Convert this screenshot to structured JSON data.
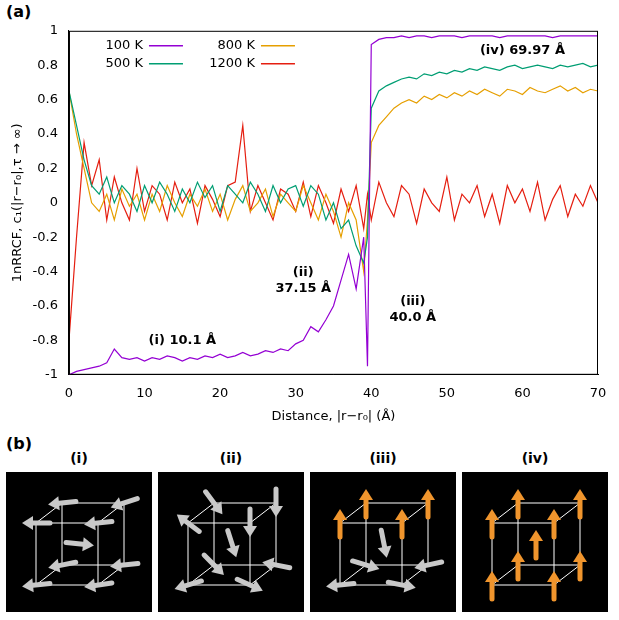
{
  "panel_labels": [
    "(a)",
    "(b)"
  ],
  "chart_data": {
    "type": "line",
    "x_label": "Distance, |r−r₀| (Å)",
    "y_label": "1nRRCF, c₁(|r−r₀|,τ → ∞)",
    "x": [
      0,
      1,
      2,
      3,
      4,
      5,
      6,
      7,
      8,
      9,
      10,
      11,
      12,
      13,
      14,
      15,
      16,
      17,
      18,
      19,
      20,
      21,
      22,
      23,
      24,
      25,
      26,
      27,
      28,
      29,
      30,
      31,
      32,
      33,
      34,
      35,
      36,
      37,
      38,
      39,
      39.5,
      40,
      41,
      42,
      43,
      44,
      45,
      46,
      47,
      48,
      49,
      50,
      51,
      52,
      53,
      54,
      55,
      56,
      57,
      58,
      59,
      60,
      61,
      62,
      63,
      64,
      65,
      66,
      67,
      68,
      69,
      70
    ],
    "series": [
      {
        "name": "100 K",
        "color": "#9400d3",
        "values": [
          -1,
          -0.98,
          -0.97,
          -0.96,
          -0.95,
          -0.93,
          -0.85,
          -0.9,
          -0.91,
          -0.9,
          -0.92,
          -0.9,
          -0.91,
          -0.89,
          -0.9,
          -0.92,
          -0.9,
          -0.91,
          -0.89,
          -0.9,
          -0.88,
          -0.9,
          -0.89,
          -0.87,
          -0.89,
          -0.88,
          -0.86,
          -0.87,
          -0.85,
          -0.86,
          -0.82,
          -0.8,
          -0.72,
          -0.75,
          -0.68,
          -0.6,
          -0.45,
          -0.3,
          -0.5,
          -0.2,
          -0.95,
          0.92,
          0.95,
          0.96,
          0.96,
          0.97,
          0.96,
          0.97,
          0.97,
          0.96,
          0.97,
          0.97,
          0.97,
          0.96,
          0.97,
          0.97,
          0.97,
          0.97,
          0.96,
          0.97,
          0.97,
          0.97,
          0.97,
          0.97,
          0.97,
          0.96,
          0.97,
          0.97,
          0.97,
          0.97,
          0.97,
          0.97
        ]
      },
      {
        "name": "500 K",
        "color": "#009e73",
        "values": [
          0.65,
          0.45,
          0.25,
          0.1,
          0.05,
          0.15,
          0,
          0.1,
          0.05,
          -0.05,
          0.1,
          0,
          0.12,
          0.05,
          -0.05,
          0.08,
          0,
          0.12,
          0.03,
          0.1,
          -0.05,
          0.1,
          0.05,
          0,
          0.12,
          0.05,
          -0.05,
          0.1,
          0,
          0.08,
          0.1,
          -0.02,
          0.1,
          0.05,
          -0.1,
          0,
          -0.15,
          -0.1,
          -0.25,
          -0.35,
          -0.2,
          0.55,
          0.65,
          0.68,
          0.7,
          0.72,
          0.73,
          0.72,
          0.75,
          0.74,
          0.76,
          0.75,
          0.77,
          0.76,
          0.78,
          0.77,
          0.79,
          0.78,
          0.77,
          0.79,
          0.8,
          0.78,
          0.79,
          0.8,
          0.79,
          0.78,
          0.8,
          0.79,
          0.8,
          0.81,
          0.79,
          0.8
        ]
      },
      {
        "name": "800 K",
        "color": "#e69f00",
        "values": [
          0.65,
          0.4,
          0.2,
          0,
          -0.05,
          0.05,
          -0.1,
          0.08,
          -0.02,
          0.05,
          -0.1,
          0.05,
          -0.05,
          0.1,
          0,
          -0.08,
          0.05,
          -0.02,
          0.08,
          -0.05,
          0.05,
          -0.1,
          0.02,
          0.1,
          -0.05,
          0,
          0.08,
          -0.08,
          0.05,
          0,
          -0.05,
          0.1,
          0,
          -0.1,
          0.05,
          -0.05,
          -0.2,
          0,
          -0.1,
          -0.4,
          -0.1,
          0.35,
          0.45,
          0.5,
          0.55,
          0.58,
          0.6,
          0.58,
          0.62,
          0.6,
          0.63,
          0.61,
          0.64,
          0.62,
          0.65,
          0.63,
          0.66,
          0.64,
          0.62,
          0.66,
          0.65,
          0.63,
          0.67,
          0.65,
          0.64,
          0.66,
          0.68,
          0.65,
          0.67,
          0.64,
          0.66,
          0.65
        ]
      },
      {
        "name": "1200 K",
        "color": "#e51e10",
        "values": [
          -0.8,
          -0.2,
          0.35,
          0.1,
          0.25,
          -0.1,
          0.15,
          0,
          -0.1,
          0.2,
          -0.05,
          0.1,
          0.05,
          -0.1,
          0.12,
          0,
          0.08,
          -0.12,
          0.1,
          0.02,
          -0.08,
          0.1,
          0.12,
          0.45,
          -0.05,
          0.1,
          0,
          -0.1,
          0.08,
          0.05,
          -0.05,
          0.12,
          -0.08,
          0.1,
          0,
          -0.12,
          0.08,
          -0.05,
          0.1,
          -0.15,
          0.05,
          -0.1,
          0.12,
          0,
          -0.08,
          0.1,
          0.05,
          -0.12,
          0.08,
          0,
          -0.05,
          0.15,
          -0.1,
          0.05,
          0,
          0.1,
          -0.08,
          0.05,
          -0.12,
          0.1,
          0,
          0.08,
          -0.05,
          0.12,
          -0.1,
          0.02,
          0.1,
          -0.08,
          0.05,
          -0.02,
          0.1,
          0
        ]
      }
    ],
    "xlim": [
      0,
      70
    ],
    "xticks": [
      0,
      10,
      20,
      30,
      40,
      50,
      60,
      70
    ],
    "ylim": [
      -1,
      1
    ],
    "yticks": [
      -1,
      -0.8,
      -0.6,
      -0.4,
      -0.2,
      0,
      0.2,
      0.4,
      0.6,
      0.8,
      1
    ],
    "grid": false,
    "legend": "top-left",
    "annotations": [
      "(i) 10.1 Å",
      "(ii) 37.15 Å",
      "(iii) 40.0 Å",
      "(iv) 69.97 Å"
    ]
  },
  "diagram": {
    "labels": [
      "(i)",
      "(ii)",
      "(iii)",
      "(iv)"
    ]
  }
}
